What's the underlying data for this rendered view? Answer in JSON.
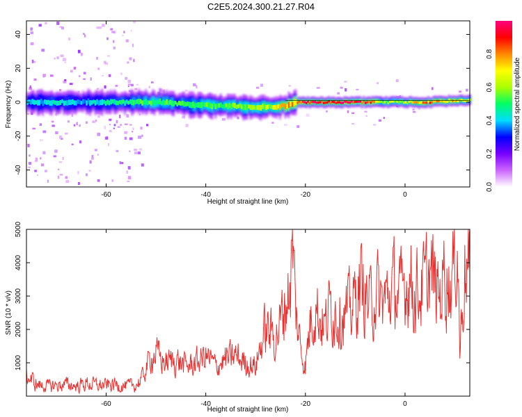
{
  "title": "C2E5.2024.300.21.27.R04",
  "chart_data": [
    {
      "type": "heatmap",
      "xlabel": "Height of straight line (km)",
      "ylabel": "Frequency (Hz)",
      "xlim": [
        -76,
        13
      ],
      "ylim": [
        -50,
        48
      ],
      "xticks": [
        -60,
        -40,
        -20,
        0
      ],
      "yticks": [
        -40,
        -20,
        0,
        20,
        40
      ],
      "colorbar": {
        "label": "Normalized spectral amplitude",
        "range": [
          0,
          1
        ],
        "ticks": [
          "0.0",
          "0.2",
          "0.4",
          "0.6",
          "0.8"
        ],
        "colors": [
          "#ffffff",
          "#cc66ff",
          "#7700ff",
          "#0000ff",
          "#00ddff",
          "#00ff66",
          "#aaff00",
          "#ffff00",
          "#ff8800",
          "#ff0000",
          "#ff0080"
        ]
      },
      "ridge": {
        "x": [
          -76,
          -70,
          -65,
          -60,
          -55,
          -50,
          -45,
          -40,
          -35,
          -30,
          -27,
          -24,
          -22,
          -20,
          -15,
          -10,
          -7,
          -5,
          0,
          5,
          10,
          13
        ],
        "freq": [
          0,
          0,
          0,
          0,
          0,
          0,
          -1,
          -2,
          -2,
          -3,
          -3,
          -2,
          0,
          0,
          0,
          0,
          0,
          0,
          0,
          0,
          1,
          1
        ],
        "amplitude": [
          0.4,
          0.45,
          0.4,
          0.45,
          0.5,
          0.55,
          0.5,
          0.55,
          0.55,
          0.6,
          0.65,
          0.75,
          0.8,
          0.95,
          0.95,
          0.95,
          0.9,
          0.6,
          0.65,
          0.85,
          0.75,
          0.6
        ]
      }
    },
    {
      "type": "line",
      "xlabel": "Height of straight line (km)",
      "ylabel": "SNR (10 * v/v)",
      "xlim": [
        -76,
        13
      ],
      "ylim": [
        0,
        5000
      ],
      "xticks": [
        -60,
        -40,
        -20,
        0
      ],
      "yticks": [
        1000,
        2000,
        3000,
        4000,
        5000
      ],
      "series": [
        {
          "color": "#e8302e",
          "x": [
            -76,
            -74,
            -72,
            -70,
            -68,
            -66,
            -64,
            -62,
            -60,
            -58,
            -56,
            -54,
            -53,
            -52,
            -51,
            -50,
            -49,
            -48,
            -46,
            -44,
            -42,
            -40,
            -38,
            -36,
            -34,
            -32,
            -30,
            -29,
            -28,
            -27,
            -26,
            -25,
            -24,
            -23,
            -22.5,
            -22,
            -21,
            -20,
            -19,
            -18,
            -17,
            -16,
            -15,
            -14,
            -13,
            -12,
            -11,
            -10,
            -9,
            -8,
            -7,
            -6,
            -5,
            -4,
            -3,
            -2,
            -1,
            0,
            1,
            2,
            3,
            4,
            5,
            6,
            7,
            8,
            9,
            10,
            10.5,
            11,
            12,
            13
          ],
          "y": [
            600,
            350,
            300,
            320,
            350,
            300,
            380,
            330,
            320,
            350,
            300,
            330,
            500,
            800,
            1200,
            1300,
            1100,
            1000,
            1100,
            900,
            1000,
            1200,
            900,
            1100,
            1200,
            1000,
            900,
            1500,
            2000,
            1900,
            1800,
            2200,
            2800,
            3400,
            4500,
            2600,
            1500,
            900,
            2300,
            2800,
            2300,
            2100,
            2700,
            2600,
            2500,
            2400,
            2600,
            2900,
            3400,
            3000,
            2700,
            3200,
            2800,
            2900,
            3100,
            3300,
            2900,
            3400,
            3600,
            3100,
            3200,
            3300,
            3700,
            3300,
            3000,
            3900,
            3300,
            3900,
            4900,
            1400,
            3900,
            3600
          ]
        }
      ]
    }
  ]
}
